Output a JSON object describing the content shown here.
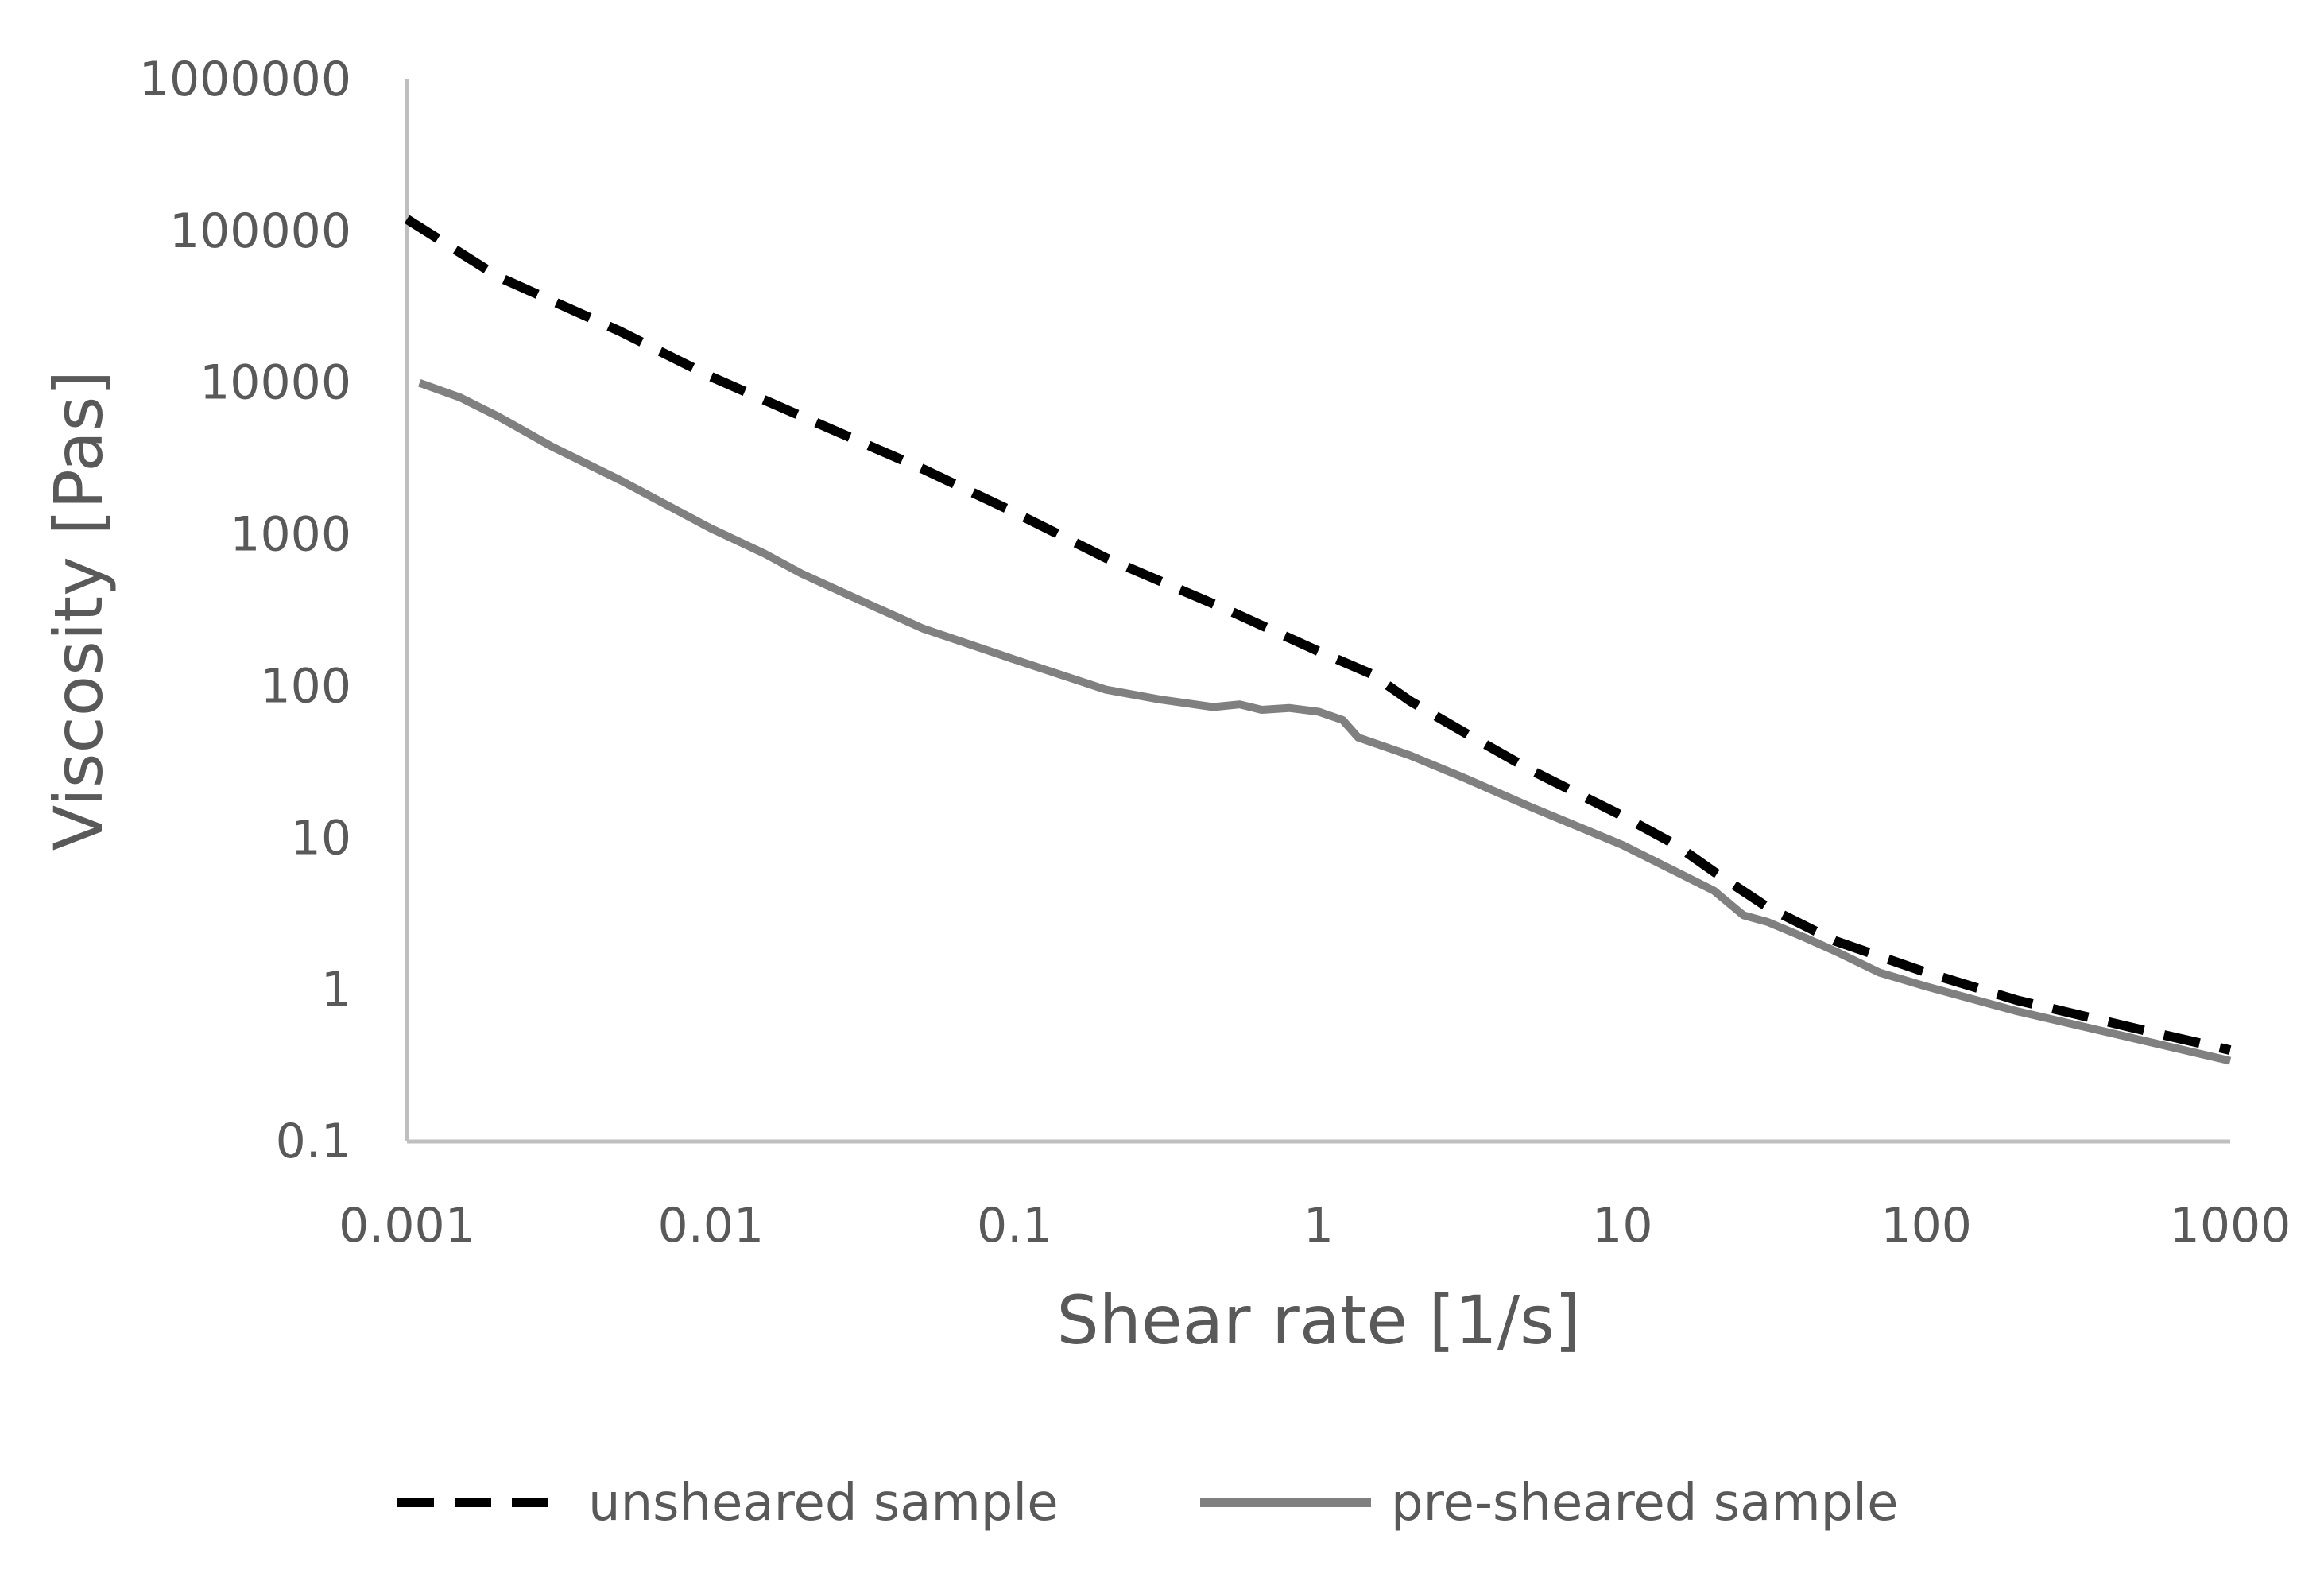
{
  "chart_data": {
    "type": "line",
    "title": "",
    "xlabel": "Shear rate [1/s]",
    "ylabel": "Viscosity [Pas]",
    "xscale": "log",
    "yscale": "log",
    "xlim": [
      0.001,
      1000
    ],
    "ylim": [
      0.1,
      1000000
    ],
    "xticks": [
      0.001,
      0.01,
      0.1,
      1,
      10,
      100,
      1000
    ],
    "xtick_labels": [
      "0.001",
      "0.01",
      "0.1",
      "1",
      "10",
      "100",
      "1000"
    ],
    "yticks": [
      0.1,
      1,
      10,
      100,
      1000,
      10000,
      100000,
      1000000
    ],
    "ytick_labels": [
      "0.1",
      "1",
      "10",
      "100",
      "1000",
      "10000",
      "100000",
      "1000000"
    ],
    "grid": false,
    "legend_position": "bottom",
    "series": [
      {
        "name": "unsheared sample",
        "color": "#000000",
        "style": "dashed",
        "x": [
          0.001,
          0.002,
          0.005,
          0.01,
          0.02,
          0.05,
          0.1,
          0.2,
          0.5,
          1,
          1.5,
          2,
          3,
          5,
          10,
          15,
          20,
          30,
          50,
          100,
          200,
          500,
          1000
        ],
        "y": [
          120000,
          50000,
          22000,
          11000,
          6000,
          2700,
          1400,
          700,
          320,
          170,
          120,
          80,
          50,
          28,
          14,
          9,
          6,
          3.5,
          2.1,
          1.3,
          0.85,
          0.55,
          0.4
        ]
      },
      {
        "name": "pre-sheared sample",
        "color": "#808080",
        "style": "solid",
        "x": [
          0.0011,
          0.0015,
          0.002,
          0.003,
          0.005,
          0.01,
          0.015,
          0.02,
          0.03,
          0.05,
          0.1,
          0.2,
          0.3,
          0.45,
          0.55,
          0.65,
          0.8,
          1,
          1.2,
          1.35,
          2,
          3,
          5,
          10,
          15,
          20,
          25,
          30,
          40,
          50,
          70,
          100,
          200,
          500,
          1000
        ],
        "y": [
          10000,
          8000,
          6000,
          3800,
          2300,
          1100,
          750,
          550,
          380,
          240,
          150,
          95,
          82,
          73,
          76,
          70,
          72,
          68,
          60,
          46,
          35,
          25,
          16,
          9,
          6,
          4.5,
          3.1,
          2.8,
          2.2,
          1.8,
          1.3,
          1.05,
          0.72,
          0.47,
          0.34
        ]
      }
    ]
  }
}
